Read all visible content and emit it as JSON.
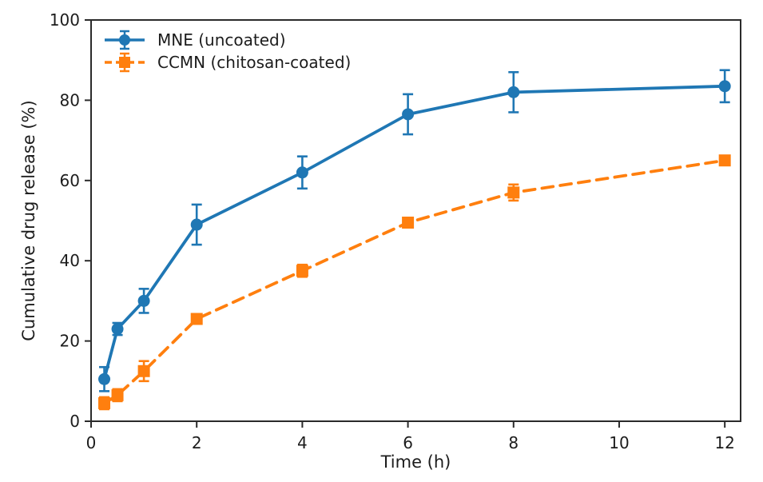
{
  "figure": {
    "background": "#ffffff",
    "axis_color": "#2b2b2b",
    "text_color": "#1c1c1c"
  },
  "chart_data": {
    "type": "line",
    "title": "",
    "xlabel": "Time (h)",
    "ylabel": "Cumulative drug release (%)",
    "xlim": [
      0,
      12.3
    ],
    "ylim": [
      0,
      100
    ],
    "xticks": [
      0,
      2,
      4,
      6,
      8,
      10,
      12
    ],
    "yticks": [
      0,
      20,
      40,
      60,
      80,
      100
    ],
    "grid": false,
    "legend_position": "upper-left",
    "error_bars": true,
    "x": [
      0.25,
      0.5,
      1,
      2,
      4,
      6,
      8,
      12
    ],
    "series": [
      {
        "name": "MNE (uncoated)",
        "color": "#1f77b4",
        "marker": "circle",
        "line_style": "solid",
        "values": [
          10.5,
          23,
          30,
          49,
          62,
          76.5,
          82,
          83.5
        ],
        "errors": [
          3,
          1.5,
          3,
          5,
          4,
          5,
          5,
          4
        ]
      },
      {
        "name": "CCMN (chitosan-coated)",
        "color": "#ff7f0e",
        "marker": "square",
        "line_style": "dashed",
        "values": [
          4.5,
          6.5,
          12.5,
          25.5,
          37.5,
          49.5,
          57,
          65
        ],
        "errors": [
          1.5,
          1.5,
          2.5,
          1,
          1.5,
          1,
          2,
          1
        ]
      }
    ]
  }
}
